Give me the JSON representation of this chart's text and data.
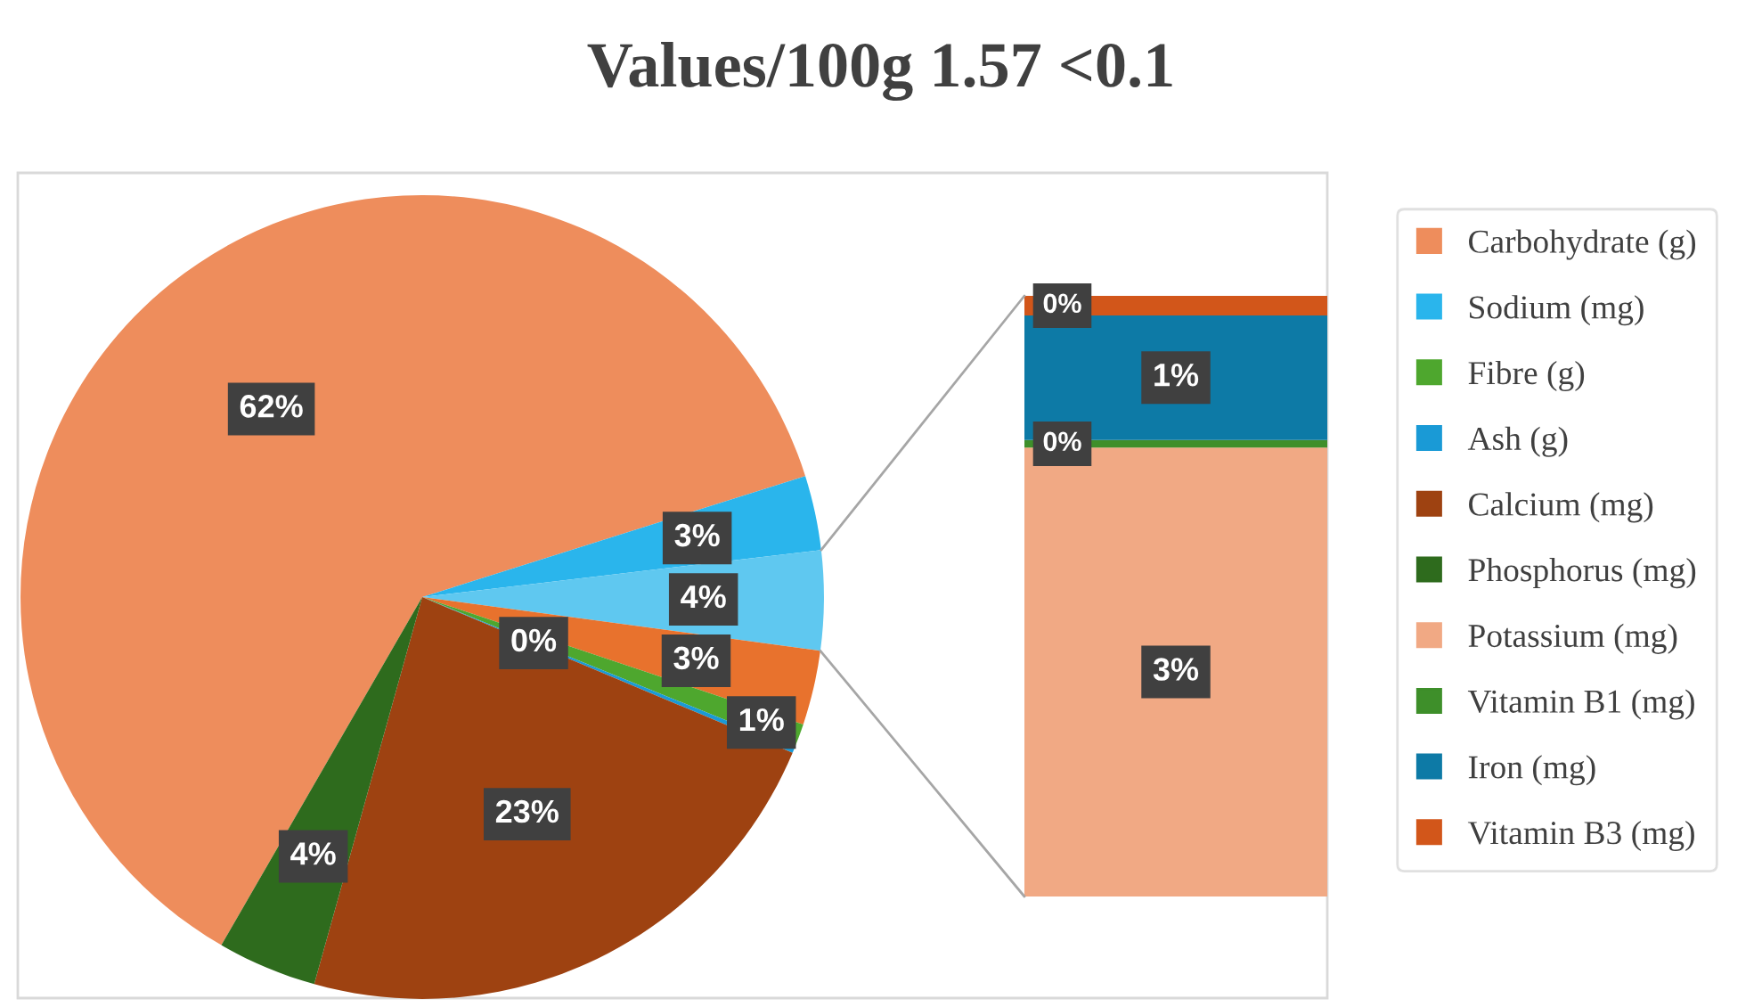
{
  "chart_data": [
    {
      "type": "pie",
      "title": "Values/100g 1.57 <0.1",
      "legend": "right",
      "categories": [
        "Carbohydrate (g)",
        "Sodium (mg)",
        null,
        null,
        "Fibre (g)",
        "Ash (g)",
        "Calcium (mg)",
        "Phosphorus (mg)"
      ],
      "values": [
        61.8,
        3,
        4,
        3,
        1,
        0.2,
        23,
        4
      ],
      "colors": [
        "#ee8d5c",
        "#2ab5ec",
        "#5fc8f0",
        "#e8722d",
        "#4ea72e",
        "#1a9ad6",
        "#9e4211",
        "#2e6b1d"
      ],
      "value_labels": [
        "62%",
        "3%",
        "4%",
        "3%",
        "1%",
        "0%",
        "23%",
        "4%"
      ]
    },
    {
      "type": "bar",
      "stacked": true,
      "legend": "right",
      "categories": [
        null
      ],
      "series": [
        {
          "name": "Potassium (mg)",
          "color": "#f1a984",
          "values": [
            2.99
          ],
          "value_labels": [
            "3%"
          ]
        },
        {
          "name": "Vitamin B1 (mg)",
          "color": "#3e8f2a",
          "values": [
            0.05
          ],
          "value_labels": [
            "0%"
          ]
        },
        {
          "name": "Iron (mg)",
          "color": "#0d7aa6",
          "values": [
            0.83
          ],
          "value_labels": [
            "1%"
          ]
        },
        {
          "name": "Vitamin B3 (mg)",
          "color": "#d2561a",
          "values": [
            0.13
          ],
          "value_labels": [
            "0%"
          ]
        }
      ]
    }
  ]
}
